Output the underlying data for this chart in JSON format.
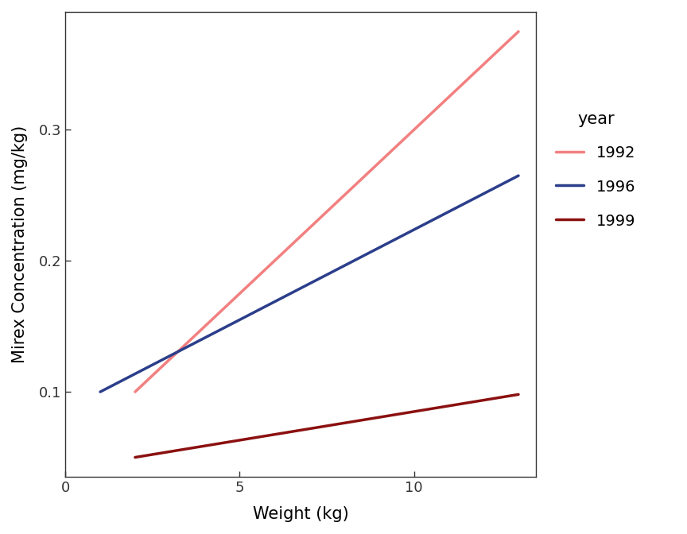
{
  "title": "",
  "xlabel": "Weight (kg)",
  "ylabel": "Mirex Concentration (mg/kg)",
  "xlim": [
    0,
    13.5
  ],
  "ylim": [
    0.035,
    0.39
  ],
  "lines": [
    {
      "label": "1992",
      "x_start": 2.0,
      "x_end": 13.0,
      "y_start": 0.1,
      "y_end": 0.375,
      "color": "#F28080",
      "linewidth": 2.5
    },
    {
      "label": "1996",
      "x_start": 1.0,
      "x_end": 13.0,
      "y_start": 0.1,
      "y_end": 0.265,
      "color": "#2B3E8B",
      "linewidth": 2.5
    },
    {
      "label": "1999",
      "x_start": 2.0,
      "x_end": 13.0,
      "y_start": 0.05,
      "y_end": 0.098,
      "color": "#8B1010",
      "linewidth": 2.5
    }
  ],
  "xticks": [
    0,
    5,
    10
  ],
  "yticks": [
    0.1,
    0.2,
    0.3
  ],
  "legend_title": "year",
  "background_color": "#FFFFFF",
  "panel_background": "#FFFFFF",
  "axis_label_fontsize": 15,
  "tick_label_fontsize": 13,
  "legend_fontsize": 14,
  "legend_title_fontsize": 15
}
